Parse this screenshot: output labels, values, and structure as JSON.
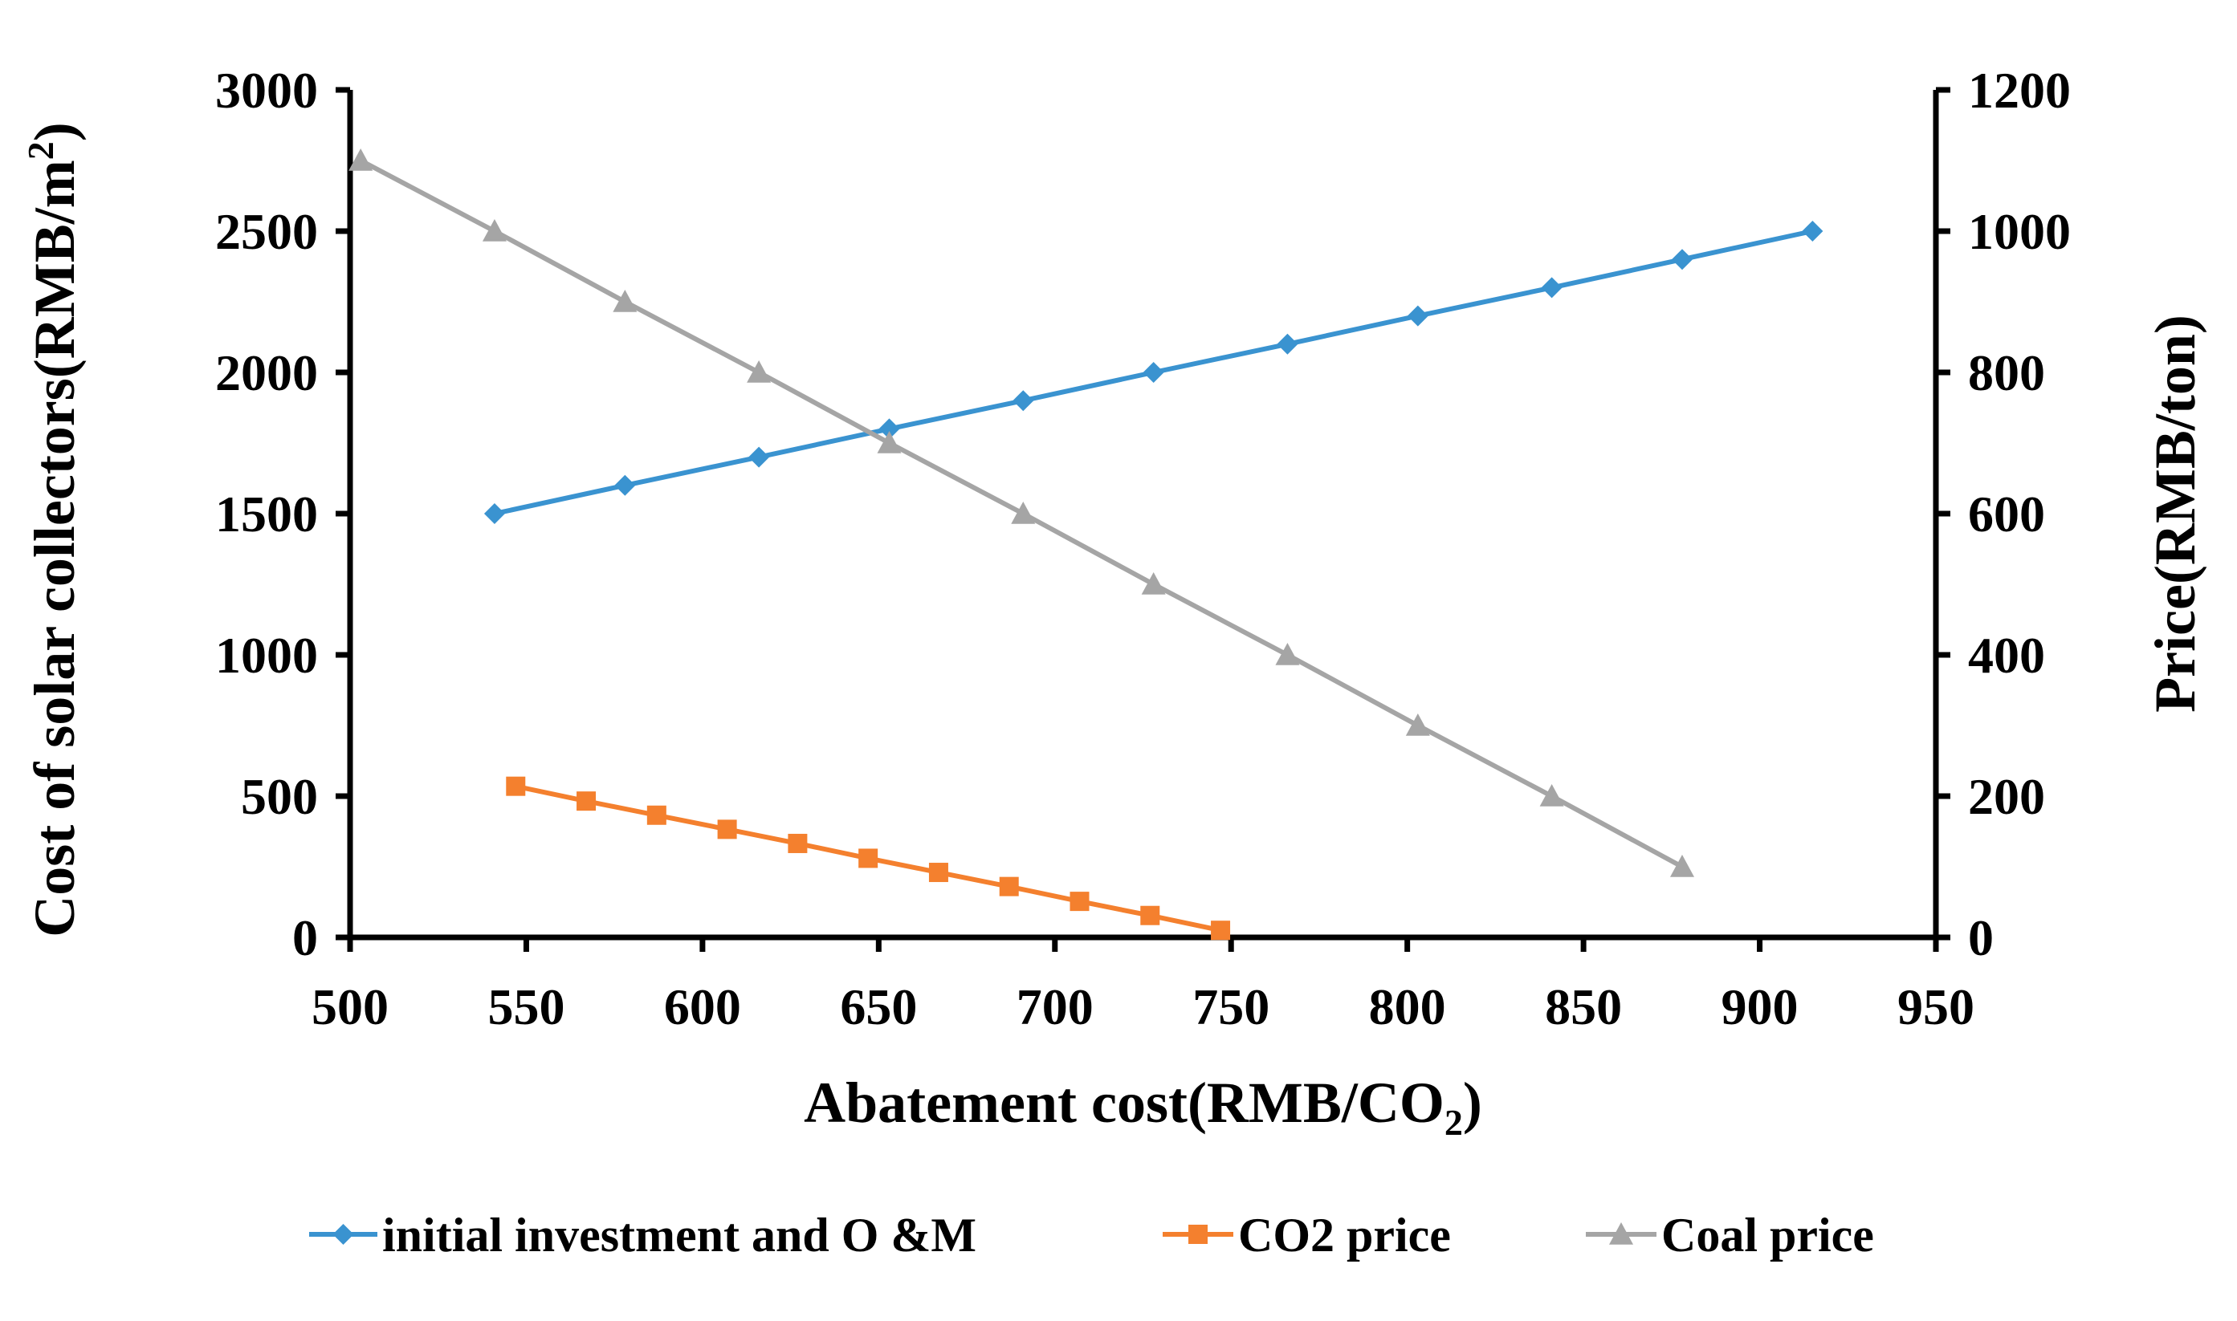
{
  "chart_data": {
    "type": "line",
    "x_axis": {
      "label_main": "Abatement cost(RMB/CO",
      "label_sub": "2",
      "label_end": ")",
      "range": [
        500,
        950
      ],
      "ticks": [
        500,
        550,
        600,
        650,
        700,
        750,
        800,
        850,
        900,
        950
      ]
    },
    "y_axis_left": {
      "label_main": "Cost of solar collectors(RMB/m",
      "label_sup": "2",
      "label_end": ")",
      "range": [
        0,
        3000
      ],
      "ticks": [
        0,
        500,
        1000,
        1500,
        2000,
        2500,
        3000
      ]
    },
    "y_axis_right": {
      "label": "Price(RMB/ton)",
      "range": [
        0,
        1200
      ],
      "ticks": [
        0,
        200,
        400,
        600,
        800,
        1000,
        1200
      ]
    },
    "grid": false,
    "legend_position": "bottom",
    "series": [
      {
        "name": "initial investment and O &M",
        "axis": "left",
        "color": "#3a93d0",
        "marker": "diamond",
        "x": [
          541,
          578,
          616,
          653,
          691,
          728,
          766,
          803,
          841,
          878,
          915
        ],
        "y": [
          1500,
          1600,
          1700,
          1800,
          1900,
          2000,
          2100,
          2200,
          2300,
          2400,
          2500
        ]
      },
      {
        "name": "CO2 price",
        "axis": "right",
        "color": "#f4802e",
        "marker": "square",
        "x": [
          547,
          567,
          587,
          607,
          627,
          647,
          667,
          687,
          707,
          727,
          747
        ],
        "y": [
          214,
          193,
          173,
          153,
          133,
          112,
          92,
          72,
          51,
          31,
          10
        ]
      },
      {
        "name": "Coal price",
        "axis": "right",
        "color": "#a5a5a5",
        "marker": "triangle",
        "x": [
          503,
          541,
          578,
          616,
          653,
          691,
          728,
          766,
          803,
          841,
          878
        ],
        "y": [
          1100,
          1000,
          900,
          800,
          700,
          600,
          500,
          400,
          300,
          200,
          100
        ]
      }
    ]
  }
}
